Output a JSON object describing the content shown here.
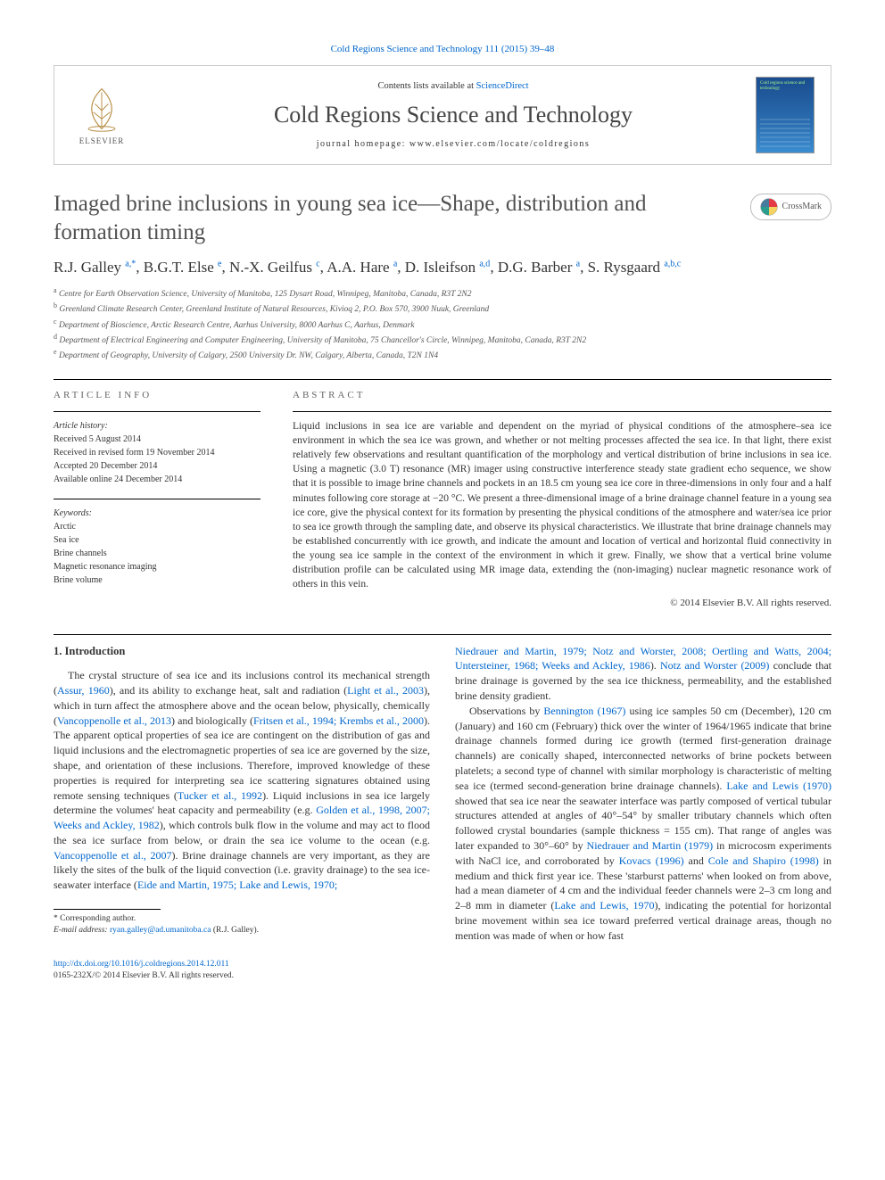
{
  "top_citation": "Cold Regions Science and Technology 111 (2015) 39–48",
  "header": {
    "contents_prefix": "Contents lists available at ",
    "contents_link": "ScienceDirect",
    "journal_name": "Cold Regions Science and Technology",
    "homepage_label": "journal homepage: www.elsevier.com/locate/coldregions",
    "publisher_name": "ELSEVIER",
    "cover_title": "Cold regions science and technology"
  },
  "crossmark_label": "CrossMark",
  "title": "Imaged brine inclusions in young sea ice—Shape, distribution and formation timing",
  "authors_html_parts": [
    {
      "name": "R.J. Galley ",
      "sup": "a,*"
    },
    {
      "name": ", B.G.T. Else ",
      "sup": "e"
    },
    {
      "name": ", N.-X. Geilfus ",
      "sup": "c"
    },
    {
      "name": ", A.A. Hare ",
      "sup": "a"
    },
    {
      "name": ", D. Isleifson ",
      "sup": "a,d"
    },
    {
      "name": ", D.G. Barber ",
      "sup": "a"
    },
    {
      "name": ", S. Rysgaard ",
      "sup": "a,b,c"
    }
  ],
  "affiliations": [
    {
      "sup": "a",
      "text": " Centre for Earth Observation Science, University of Manitoba, 125 Dysart Road, Winnipeg, Manitoba, Canada, R3T 2N2"
    },
    {
      "sup": "b",
      "text": " Greenland Climate Research Center, Greenland Institute of Natural Resources, Kivioq 2, P.O. Box 570, 3900 Nuuk, Greenland"
    },
    {
      "sup": "c",
      "text": " Department of Bioscience, Arctic Research Centre, Aarhus University, 8000 Aarhus C, Aarhus, Denmark"
    },
    {
      "sup": "d",
      "text": " Department of Electrical Engineering and Computer Engineering, University of Manitoba, 75 Chancellor's Circle, Winnipeg, Manitoba, Canada, R3T 2N2"
    },
    {
      "sup": "e",
      "text": " Department of Geography, University of Calgary, 2500 University Dr. NW, Calgary, Alberta, Canada, T2N 1N4"
    }
  ],
  "article_info": {
    "label": "article info",
    "history_label": "Article history:",
    "history": [
      "Received 5 August 2014",
      "Received in revised form 19 November 2014",
      "Accepted 20 December 2014",
      "Available online 24 December 2014"
    ],
    "keywords_label": "Keywords:",
    "keywords": [
      "Arctic",
      "Sea ice",
      "Brine channels",
      "Magnetic resonance imaging",
      "Brine volume"
    ]
  },
  "abstract": {
    "label": "abstract",
    "text": "Liquid inclusions in sea ice are variable and dependent on the myriad of physical conditions of the atmosphere–sea ice environment in which the sea ice was grown, and whether or not melting processes affected the sea ice. In that light, there exist relatively few observations and resultant quantification of the morphology and vertical distribution of brine inclusions in sea ice. Using a magnetic (3.0 T) resonance (MR) imager using constructive interference steady state gradient echo sequence, we show that it is possible to image brine channels and pockets in an 18.5 cm young sea ice core in three-dimensions in only four and a half minutes following core storage at −20 °C. We present a three-dimensional image of a brine drainage channel feature in a young sea ice core, give the physical context for its formation by presenting the physical conditions of the atmosphere and water/sea ice prior to sea ice growth through the sampling date, and observe its physical characteristics. We illustrate that brine drainage channels may be established concurrently with ice growth, and indicate the amount and location of vertical and horizontal fluid connectivity in the young sea ice sample in the context of the environment in which it grew. Finally, we show that a vertical brine volume distribution profile can be calculated using MR image data, extending the (non-imaging) nuclear magnetic resonance work of others in this vein.",
    "copyright": "© 2014 Elsevier B.V. All rights reserved."
  },
  "body": {
    "heading": "1. Introduction",
    "col1": [
      {
        "type": "text",
        "value": "The crystal structure of sea ice and its inclusions control its mechanical strength ("
      },
      {
        "type": "ref",
        "value": "Assur, 1960"
      },
      {
        "type": "text",
        "value": "), and its ability to exchange heat, salt and radiation ("
      },
      {
        "type": "ref",
        "value": "Light et al., 2003"
      },
      {
        "type": "text",
        "value": "), which in turn affect the atmosphere above and the ocean below, physically, chemically ("
      },
      {
        "type": "ref",
        "value": "Vancoppenolle et al., 2013"
      },
      {
        "type": "text",
        "value": ") and biologically ("
      },
      {
        "type": "ref",
        "value": "Fritsen et al., 1994; Krembs et al., 2000"
      },
      {
        "type": "text",
        "value": "). The apparent optical properties of sea ice are contingent on the distribution of gas and liquid inclusions and the electromagnetic properties of sea ice are governed by the size, shape, and orientation of these inclusions. Therefore, improved knowledge of these properties is required for interpreting sea ice scattering signatures obtained using remote sensing techniques ("
      },
      {
        "type": "ref",
        "value": "Tucker et al., 1992"
      },
      {
        "type": "text",
        "value": "). Liquid inclusions in sea ice largely determine the volumes' heat capacity and permeability (e.g. "
      },
      {
        "type": "ref",
        "value": "Golden et al., 1998, 2007; Weeks and Ackley, 1982"
      },
      {
        "type": "text",
        "value": "), which controls bulk flow in the volume and may act to flood the sea ice surface from below, or drain the sea ice volume to the ocean (e.g. "
      },
      {
        "type": "ref",
        "value": "Vancoppenolle et al., 2007"
      },
      {
        "type": "text",
        "value": "). Brine drainage channels are very important, as they are likely the sites of the bulk of the liquid convection (i.e. gravity drainage) to the sea ice-seawater interface ("
      },
      {
        "type": "ref",
        "value": "Eide and Martin, 1975; Lake and Lewis, 1970;"
      }
    ],
    "col2_pre": [
      {
        "type": "ref",
        "value": "Niedrauer and Martin, 1979; Notz and Worster, 2008; Oertling and Watts, 2004; Untersteiner, 1968; Weeks and Ackley, 1986"
      },
      {
        "type": "text",
        "value": "). "
      },
      {
        "type": "ref",
        "value": "Notz and Worster (2009)"
      },
      {
        "type": "text",
        "value": " conclude that brine drainage is governed by the sea ice thickness, permeability, and the established brine density gradient."
      }
    ],
    "col2_p2": [
      {
        "type": "text",
        "value": "Observations by "
      },
      {
        "type": "ref",
        "value": "Bennington (1967)"
      },
      {
        "type": "text",
        "value": " using ice samples 50 cm (December), 120 cm (January) and 160 cm (February) thick over the winter of 1964/1965 indicate that brine drainage channels formed during ice growth (termed first-generation drainage channels) are conically shaped, interconnected networks of brine pockets between platelets; a second type of channel with similar morphology is characteristic of melting sea ice (termed second-generation brine drainage channels). "
      },
      {
        "type": "ref",
        "value": "Lake and Lewis (1970)"
      },
      {
        "type": "text",
        "value": " showed that sea ice near the seawater interface was partly composed of vertical tubular structures attended at angles of 40°–54° by smaller tributary channels which often followed crystal boundaries (sample thickness = 155 cm). That range of angles was later expanded to 30°–60° by "
      },
      {
        "type": "ref",
        "value": "Niedrauer and Martin (1979)"
      },
      {
        "type": "text",
        "value": " in microcosm experiments with NaCl ice, and corroborated by "
      },
      {
        "type": "ref",
        "value": "Kovacs (1996)"
      },
      {
        "type": "text",
        "value": " and "
      },
      {
        "type": "ref",
        "value": "Cole and Shapiro (1998)"
      },
      {
        "type": "text",
        "value": " in medium and thick first year ice. These 'starburst patterns' when looked on from above, had a mean diameter of 4 cm and the individual feeder channels were 2–3 cm long and 2–8 mm in diameter ("
      },
      {
        "type": "ref",
        "value": "Lake and Lewis, 1970"
      },
      {
        "type": "text",
        "value": "), indicating the potential for horizontal brine movement within sea ice toward preferred vertical drainage areas, though no mention was made of when or how fast"
      }
    ]
  },
  "footnote": {
    "corresponding": "* Corresponding author.",
    "email_label": "E-mail address: ",
    "email": "ryan.galley@ad.umanitoba.ca",
    "email_suffix": " (R.J. Galley)."
  },
  "doi": {
    "link": "http://dx.doi.org/10.1016/j.coldregions.2014.12.011",
    "issn_line": "0165-232X/© 2014 Elsevier B.V. All rights reserved."
  },
  "colors": {
    "link": "#0066cc",
    "text": "#333333",
    "rule": "#000000",
    "box_border": "#cccccc"
  }
}
